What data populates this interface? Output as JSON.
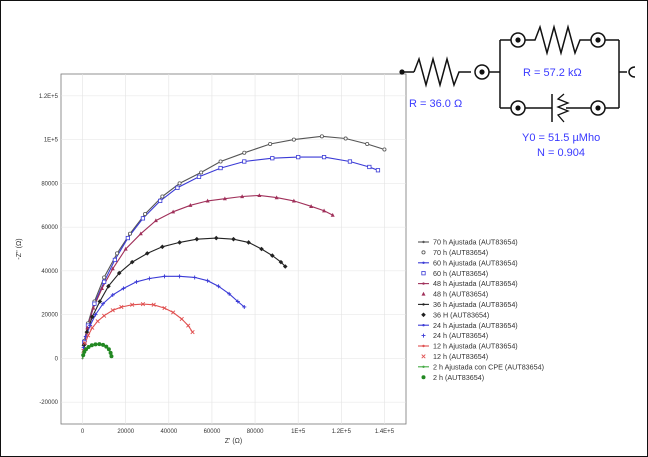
{
  "chart_data": {
    "type": "scatter",
    "xlabel": "Z' (Ω)",
    "ylabel": "-Z'' (Ω)",
    "xlim": [
      -10000,
      150000
    ],
    "ylim": [
      -30000,
      130000
    ],
    "x_ticks": [
      {
        "v": 0,
        "label": "0"
      },
      {
        "v": 20000,
        "label": "20000"
      },
      {
        "v": 40000,
        "label": "40000"
      },
      {
        "v": 60000,
        "label": "60000"
      },
      {
        "v": 80000,
        "label": "80000"
      },
      {
        "v": 100000,
        "label": "1E+5"
      },
      {
        "v": 120000,
        "label": "1.2E+5"
      },
      {
        "v": 140000,
        "label": "1.4E+5"
      }
    ],
    "y_ticks": [
      {
        "v": -20000,
        "label": "-20000"
      },
      {
        "v": 0,
        "label": "0"
      },
      {
        "v": 20000,
        "label": "20000"
      },
      {
        "v": 40000,
        "label": "40000"
      },
      {
        "v": 60000,
        "label": "60000"
      },
      {
        "v": 80000,
        "label": "80000"
      },
      {
        "v": 100000,
        "label": "1E+5"
      },
      {
        "v": 120000,
        "label": "1.2E+5"
      }
    ],
    "grid": true,
    "legend_position": "right",
    "series": [
      {
        "name": "70 h Ajustada (AUT83654)",
        "kind": "fit",
        "color": "#555555",
        "points": [
          [
            0,
            0
          ],
          [
            800,
            8000
          ],
          [
            2500,
            16000
          ],
          [
            5500,
            26000
          ],
          [
            10000,
            37000
          ],
          [
            16000,
            48000
          ],
          [
            22000,
            57000
          ],
          [
            29000,
            66000
          ],
          [
            37000,
            74000
          ],
          [
            45000,
            80000
          ],
          [
            55000,
            85000
          ],
          [
            64000,
            90000
          ],
          [
            75000,
            94000
          ],
          [
            87000,
            98000
          ],
          [
            98000,
            100000
          ],
          [
            111000,
            101500
          ],
          [
            122000,
            100500
          ],
          [
            132000,
            98000
          ],
          [
            140000,
            95500
          ]
        ]
      },
      {
        "name": "70 h (AUT83654)",
        "kind": "data",
        "color": "#555555",
        "marker": "hollow-circle",
        "points": [
          [
            800,
            8000
          ],
          [
            2500,
            16000
          ],
          [
            5500,
            26000
          ],
          [
            10000,
            37000
          ],
          [
            16000,
            48000
          ],
          [
            22000,
            57000
          ],
          [
            29000,
            66000
          ],
          [
            37000,
            74000
          ],
          [
            45000,
            80000
          ],
          [
            55000,
            85000
          ],
          [
            64000,
            90000
          ],
          [
            75000,
            94000
          ],
          [
            87000,
            98000
          ],
          [
            98000,
            100000
          ],
          [
            111000,
            101500
          ],
          [
            122000,
            100500
          ],
          [
            132000,
            98000
          ],
          [
            140000,
            95500
          ]
        ]
      },
      {
        "name": "60 h Ajustada (AUT83654)",
        "kind": "fit",
        "color": "#3a3ad6",
        "points": [
          [
            0,
            0
          ],
          [
            800,
            7500
          ],
          [
            2500,
            15000
          ],
          [
            5500,
            25000
          ],
          [
            10000,
            35000
          ],
          [
            15000,
            45000
          ],
          [
            21000,
            55000
          ],
          [
            28000,
            64000
          ],
          [
            36000,
            72000
          ],
          [
            44000,
            78000
          ],
          [
            54000,
            83000
          ],
          [
            64000,
            87000
          ],
          [
            75000,
            90000
          ],
          [
            88000,
            91500
          ],
          [
            100000,
            92000
          ],
          [
            112000,
            92000
          ],
          [
            124000,
            90000
          ],
          [
            133000,
            87500
          ],
          [
            137000,
            86000
          ]
        ]
      },
      {
        "name": "60 h (AUT83654)",
        "kind": "data",
        "color": "#3a3ad6",
        "marker": "hollow-square",
        "points": [
          [
            800,
            7500
          ],
          [
            2500,
            15000
          ],
          [
            5500,
            25000
          ],
          [
            10000,
            35000
          ],
          [
            15000,
            45000
          ],
          [
            21000,
            55000
          ],
          [
            28000,
            64000
          ],
          [
            36000,
            72000
          ],
          [
            44000,
            78000
          ],
          [
            54000,
            83000
          ],
          [
            64000,
            87000
          ],
          [
            75000,
            90000
          ],
          [
            88000,
            91500
          ],
          [
            100000,
            92000
          ],
          [
            112000,
            92000
          ],
          [
            124000,
            90000
          ],
          [
            133000,
            87500
          ],
          [
            137000,
            86000
          ]
        ]
      },
      {
        "name": "48 h Ajustada (AUT83654)",
        "kind": "fit",
        "color": "#a0305a",
        "points": [
          [
            0,
            0
          ],
          [
            700,
            7000
          ],
          [
            2200,
            14000
          ],
          [
            5000,
            23000
          ],
          [
            9000,
            32000
          ],
          [
            14000,
            41000
          ],
          [
            20000,
            50000
          ],
          [
            27000,
            57000
          ],
          [
            34000,
            63000
          ],
          [
            42000,
            67000
          ],
          [
            50000,
            70000
          ],
          [
            58000,
            72000
          ],
          [
            66000,
            73000
          ],
          [
            74000,
            74000
          ],
          [
            82000,
            74500
          ],
          [
            90000,
            73500
          ],
          [
            98000,
            72000
          ],
          [
            106000,
            69500
          ],
          [
            112000,
            67500
          ],
          [
            116000,
            65500
          ]
        ]
      },
      {
        "name": "48 h (AUT83654)",
        "kind": "data",
        "color": "#a0305a",
        "marker": "triangle",
        "points": [
          [
            700,
            7000
          ],
          [
            2200,
            14000
          ],
          [
            5000,
            23000
          ],
          [
            9000,
            32000
          ],
          [
            14000,
            41000
          ],
          [
            20000,
            50000
          ],
          [
            27000,
            57000
          ],
          [
            34000,
            63000
          ],
          [
            42000,
            67000
          ],
          [
            50000,
            70000
          ],
          [
            58000,
            72000
          ],
          [
            66000,
            73000
          ],
          [
            74000,
            74000
          ],
          [
            82000,
            74500
          ],
          [
            90000,
            73500
          ],
          [
            98000,
            72000
          ],
          [
            106000,
            69500
          ],
          [
            112000,
            67500
          ],
          [
            116000,
            65500
          ]
        ]
      },
      {
        "name": "36 h Ajustada (AUT83654)",
        "kind": "fit",
        "color": "#222222",
        "points": [
          [
            0,
            0
          ],
          [
            600,
            6000
          ],
          [
            2000,
            12000
          ],
          [
            4500,
            19000
          ],
          [
            8000,
            26000
          ],
          [
            12000,
            33000
          ],
          [
            17000,
            39000
          ],
          [
            23000,
            44000
          ],
          [
            30000,
            48000
          ],
          [
            37000,
            51000
          ],
          [
            45000,
            53000
          ],
          [
            53000,
            54500
          ],
          [
            62000,
            55000
          ],
          [
            70000,
            54500
          ],
          [
            77000,
            53000
          ],
          [
            83000,
            50000
          ],
          [
            88000,
            47000
          ],
          [
            92000,
            44000
          ],
          [
            94000,
            42000
          ]
        ]
      },
      {
        "name": "36 H (AUT83654)",
        "kind": "data",
        "color": "#222222",
        "marker": "filled-diamond",
        "points": [
          [
            600,
            6000
          ],
          [
            2000,
            12000
          ],
          [
            4500,
            19000
          ],
          [
            8000,
            26000
          ],
          [
            12000,
            33000
          ],
          [
            17000,
            39000
          ],
          [
            23000,
            44000
          ],
          [
            30000,
            48000
          ],
          [
            37000,
            51000
          ],
          [
            45000,
            53000
          ],
          [
            53000,
            54500
          ],
          [
            62000,
            55000
          ],
          [
            70000,
            54500
          ],
          [
            77000,
            53000
          ],
          [
            83000,
            50000
          ],
          [
            88000,
            47000
          ],
          [
            92000,
            44000
          ],
          [
            94000,
            42000
          ]
        ]
      },
      {
        "name": "24 h Ajustada (AUT83654)",
        "kind": "fit",
        "color": "#3a3ad6",
        "points": [
          [
            0,
            0
          ],
          [
            500,
            5000
          ],
          [
            1500,
            10000
          ],
          [
            3500,
            15000
          ],
          [
            6000,
            20000
          ],
          [
            9500,
            25000
          ],
          [
            14000,
            29000
          ],
          [
            19000,
            32000
          ],
          [
            25000,
            35000
          ],
          [
            31000,
            36500
          ],
          [
            38000,
            37500
          ],
          [
            45000,
            37500
          ],
          [
            52000,
            37000
          ],
          [
            58000,
            35500
          ],
          [
            63000,
            33000
          ],
          [
            68000,
            29500
          ],
          [
            72000,
            26000
          ],
          [
            75000,
            23500
          ]
        ]
      },
      {
        "name": "24 h (AUT83654)",
        "kind": "data",
        "color": "#3a3ad6",
        "marker": "plus",
        "points": [
          [
            500,
            5000
          ],
          [
            1500,
            10000
          ],
          [
            3500,
            15000
          ],
          [
            6000,
            20000
          ],
          [
            9500,
            25000
          ],
          [
            14000,
            29000
          ],
          [
            19000,
            32000
          ],
          [
            25000,
            35000
          ],
          [
            31000,
            36500
          ],
          [
            38000,
            37500
          ],
          [
            45000,
            37500
          ],
          [
            52000,
            37000
          ],
          [
            58000,
            35500
          ],
          [
            63000,
            33000
          ],
          [
            68000,
            29500
          ],
          [
            72000,
            26000
          ],
          [
            75000,
            23500
          ]
        ]
      },
      {
        "name": "12 h Ajustada (AUT83654)",
        "kind": "fit",
        "color": "#e05050",
        "points": [
          [
            0,
            0
          ],
          [
            400,
            3500
          ],
          [
            1200,
            7000
          ],
          [
            2600,
            10500
          ],
          [
            4500,
            14000
          ],
          [
            7000,
            17000
          ],
          [
            10000,
            19500
          ],
          [
            14000,
            22000
          ],
          [
            18000,
            23500
          ],
          [
            23000,
            24500
          ],
          [
            28000,
            24800
          ],
          [
            33000,
            24500
          ],
          [
            38000,
            23000
          ],
          [
            42000,
            21000
          ],
          [
            46000,
            18000
          ],
          [
            49000,
            15000
          ],
          [
            51000,
            12000
          ]
        ]
      },
      {
        "name": "12 h (AUT83654)",
        "kind": "data",
        "color": "#e05050",
        "marker": "cross",
        "points": [
          [
            400,
            3500
          ],
          [
            1200,
            7000
          ],
          [
            2600,
            10500
          ],
          [
            4500,
            14000
          ],
          [
            7000,
            17000
          ],
          [
            10000,
            19500
          ],
          [
            14000,
            22000
          ],
          [
            18000,
            23500
          ],
          [
            23000,
            24500
          ],
          [
            28000,
            24800
          ],
          [
            33000,
            24500
          ],
          [
            38000,
            23000
          ],
          [
            42000,
            21000
          ],
          [
            46000,
            18000
          ],
          [
            49000,
            15000
          ],
          [
            51000,
            12000
          ]
        ]
      },
      {
        "name": "2 h Ajustada con CPE (AUT83654)",
        "kind": "fit",
        "color": "#44aa44",
        "points": [
          [
            0,
            0
          ],
          [
            300,
            1500
          ],
          [
            800,
            3000
          ],
          [
            1600,
            4200
          ],
          [
            2800,
            5200
          ],
          [
            4300,
            6000
          ],
          [
            6000,
            6400
          ],
          [
            7800,
            6500
          ],
          [
            9500,
            6200
          ],
          [
            11000,
            5400
          ],
          [
            12200,
            4200
          ],
          [
            13000,
            2500
          ],
          [
            13400,
            1000
          ]
        ]
      },
      {
        "name": "2 h (AUT83654)",
        "kind": "data",
        "color": "#228822",
        "marker": "filled-circle",
        "points": [
          [
            300,
            1500
          ],
          [
            800,
            3000
          ],
          [
            1600,
            4200
          ],
          [
            2800,
            5200
          ],
          [
            4300,
            6000
          ],
          [
            6000,
            6400
          ],
          [
            7800,
            6500
          ],
          [
            9500,
            6200
          ],
          [
            11000,
            5400
          ],
          [
            12200,
            4200
          ],
          [
            13000,
            2500
          ],
          [
            13400,
            1000
          ]
        ]
      }
    ]
  },
  "circuit": {
    "r_series_label": "R = 36.0 Ω",
    "r_parallel_label": "R = 57.2 kΩ",
    "cpe_y0_label": "Y0 = 51.5 µMho",
    "cpe_n_label": "N = 0.904",
    "label_color": "#3a3aff"
  }
}
